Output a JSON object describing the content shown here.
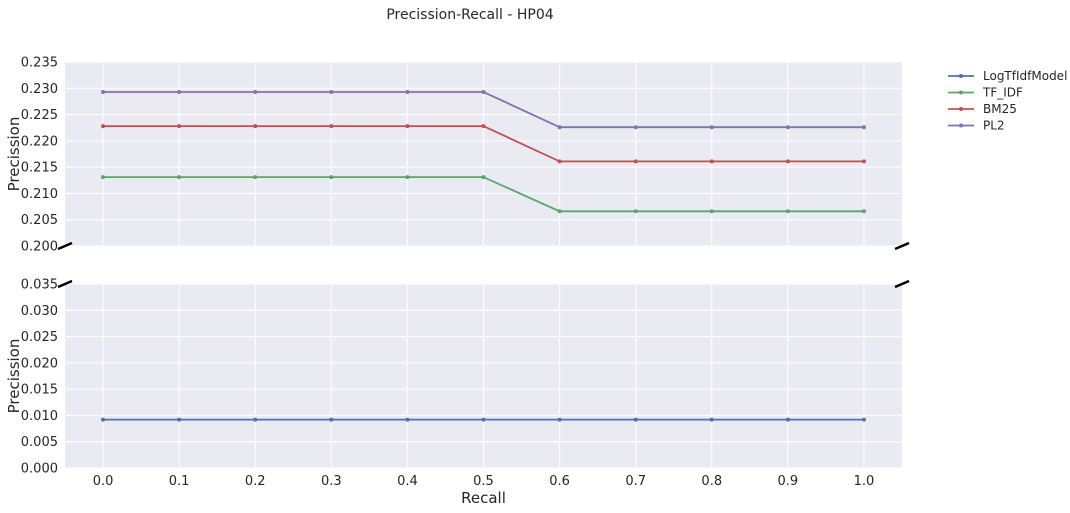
{
  "chart_data": {
    "type": "line",
    "title": "Precission-Recall - HP04",
    "xlabel": "Recall",
    "ylabel": "Precission",
    "x": [
      0.0,
      0.1,
      0.2,
      0.3,
      0.4,
      0.5,
      0.6,
      0.7,
      0.8,
      0.9,
      1.0
    ],
    "x_ticks": [
      "0.0",
      "0.1",
      "0.2",
      "0.3",
      "0.4",
      "0.5",
      "0.6",
      "0.7",
      "0.8",
      "0.9",
      "1.0"
    ],
    "xlim": [
      -0.05,
      1.05
    ],
    "broken_y_axis": true,
    "panels": [
      {
        "name": "upper",
        "ylim": [
          0.2,
          0.235
        ],
        "y_ticks": [
          "0.200",
          "0.205",
          "0.210",
          "0.215",
          "0.220",
          "0.225",
          "0.230",
          "0.235"
        ]
      },
      {
        "name": "lower",
        "ylim": [
          0.0,
          0.035
        ],
        "y_ticks": [
          "0.000",
          "0.005",
          "0.010",
          "0.015",
          "0.020",
          "0.025",
          "0.030",
          "0.035"
        ]
      }
    ],
    "series": [
      {
        "name": "LogTfIdfModel",
        "color": "#4c72b0",
        "values": [
          0.0092,
          0.0092,
          0.0092,
          0.0092,
          0.0092,
          0.0092,
          0.0092,
          0.0092,
          0.0092,
          0.0092,
          0.0092
        ]
      },
      {
        "name": "TF_IDF",
        "color": "#55a868",
        "values": [
          0.2131,
          0.2131,
          0.2131,
          0.2131,
          0.2131,
          0.2131,
          0.2066,
          0.2066,
          0.2066,
          0.2066,
          0.2066
        ]
      },
      {
        "name": "BM25",
        "color": "#c44e52",
        "values": [
          0.2228,
          0.2228,
          0.2228,
          0.2228,
          0.2228,
          0.2228,
          0.2161,
          0.2161,
          0.2161,
          0.2161,
          0.2161
        ]
      },
      {
        "name": "PL2",
        "color": "#8172b2",
        "values": [
          0.2293,
          0.2293,
          0.2293,
          0.2293,
          0.2293,
          0.2293,
          0.2226,
          0.2226,
          0.2226,
          0.2226,
          0.2226
        ]
      }
    ],
    "legend_position": "outside-top-right",
    "grid": true,
    "style": {
      "plot_background": "#eaeaf2",
      "grid_color": "#ffffff"
    }
  }
}
